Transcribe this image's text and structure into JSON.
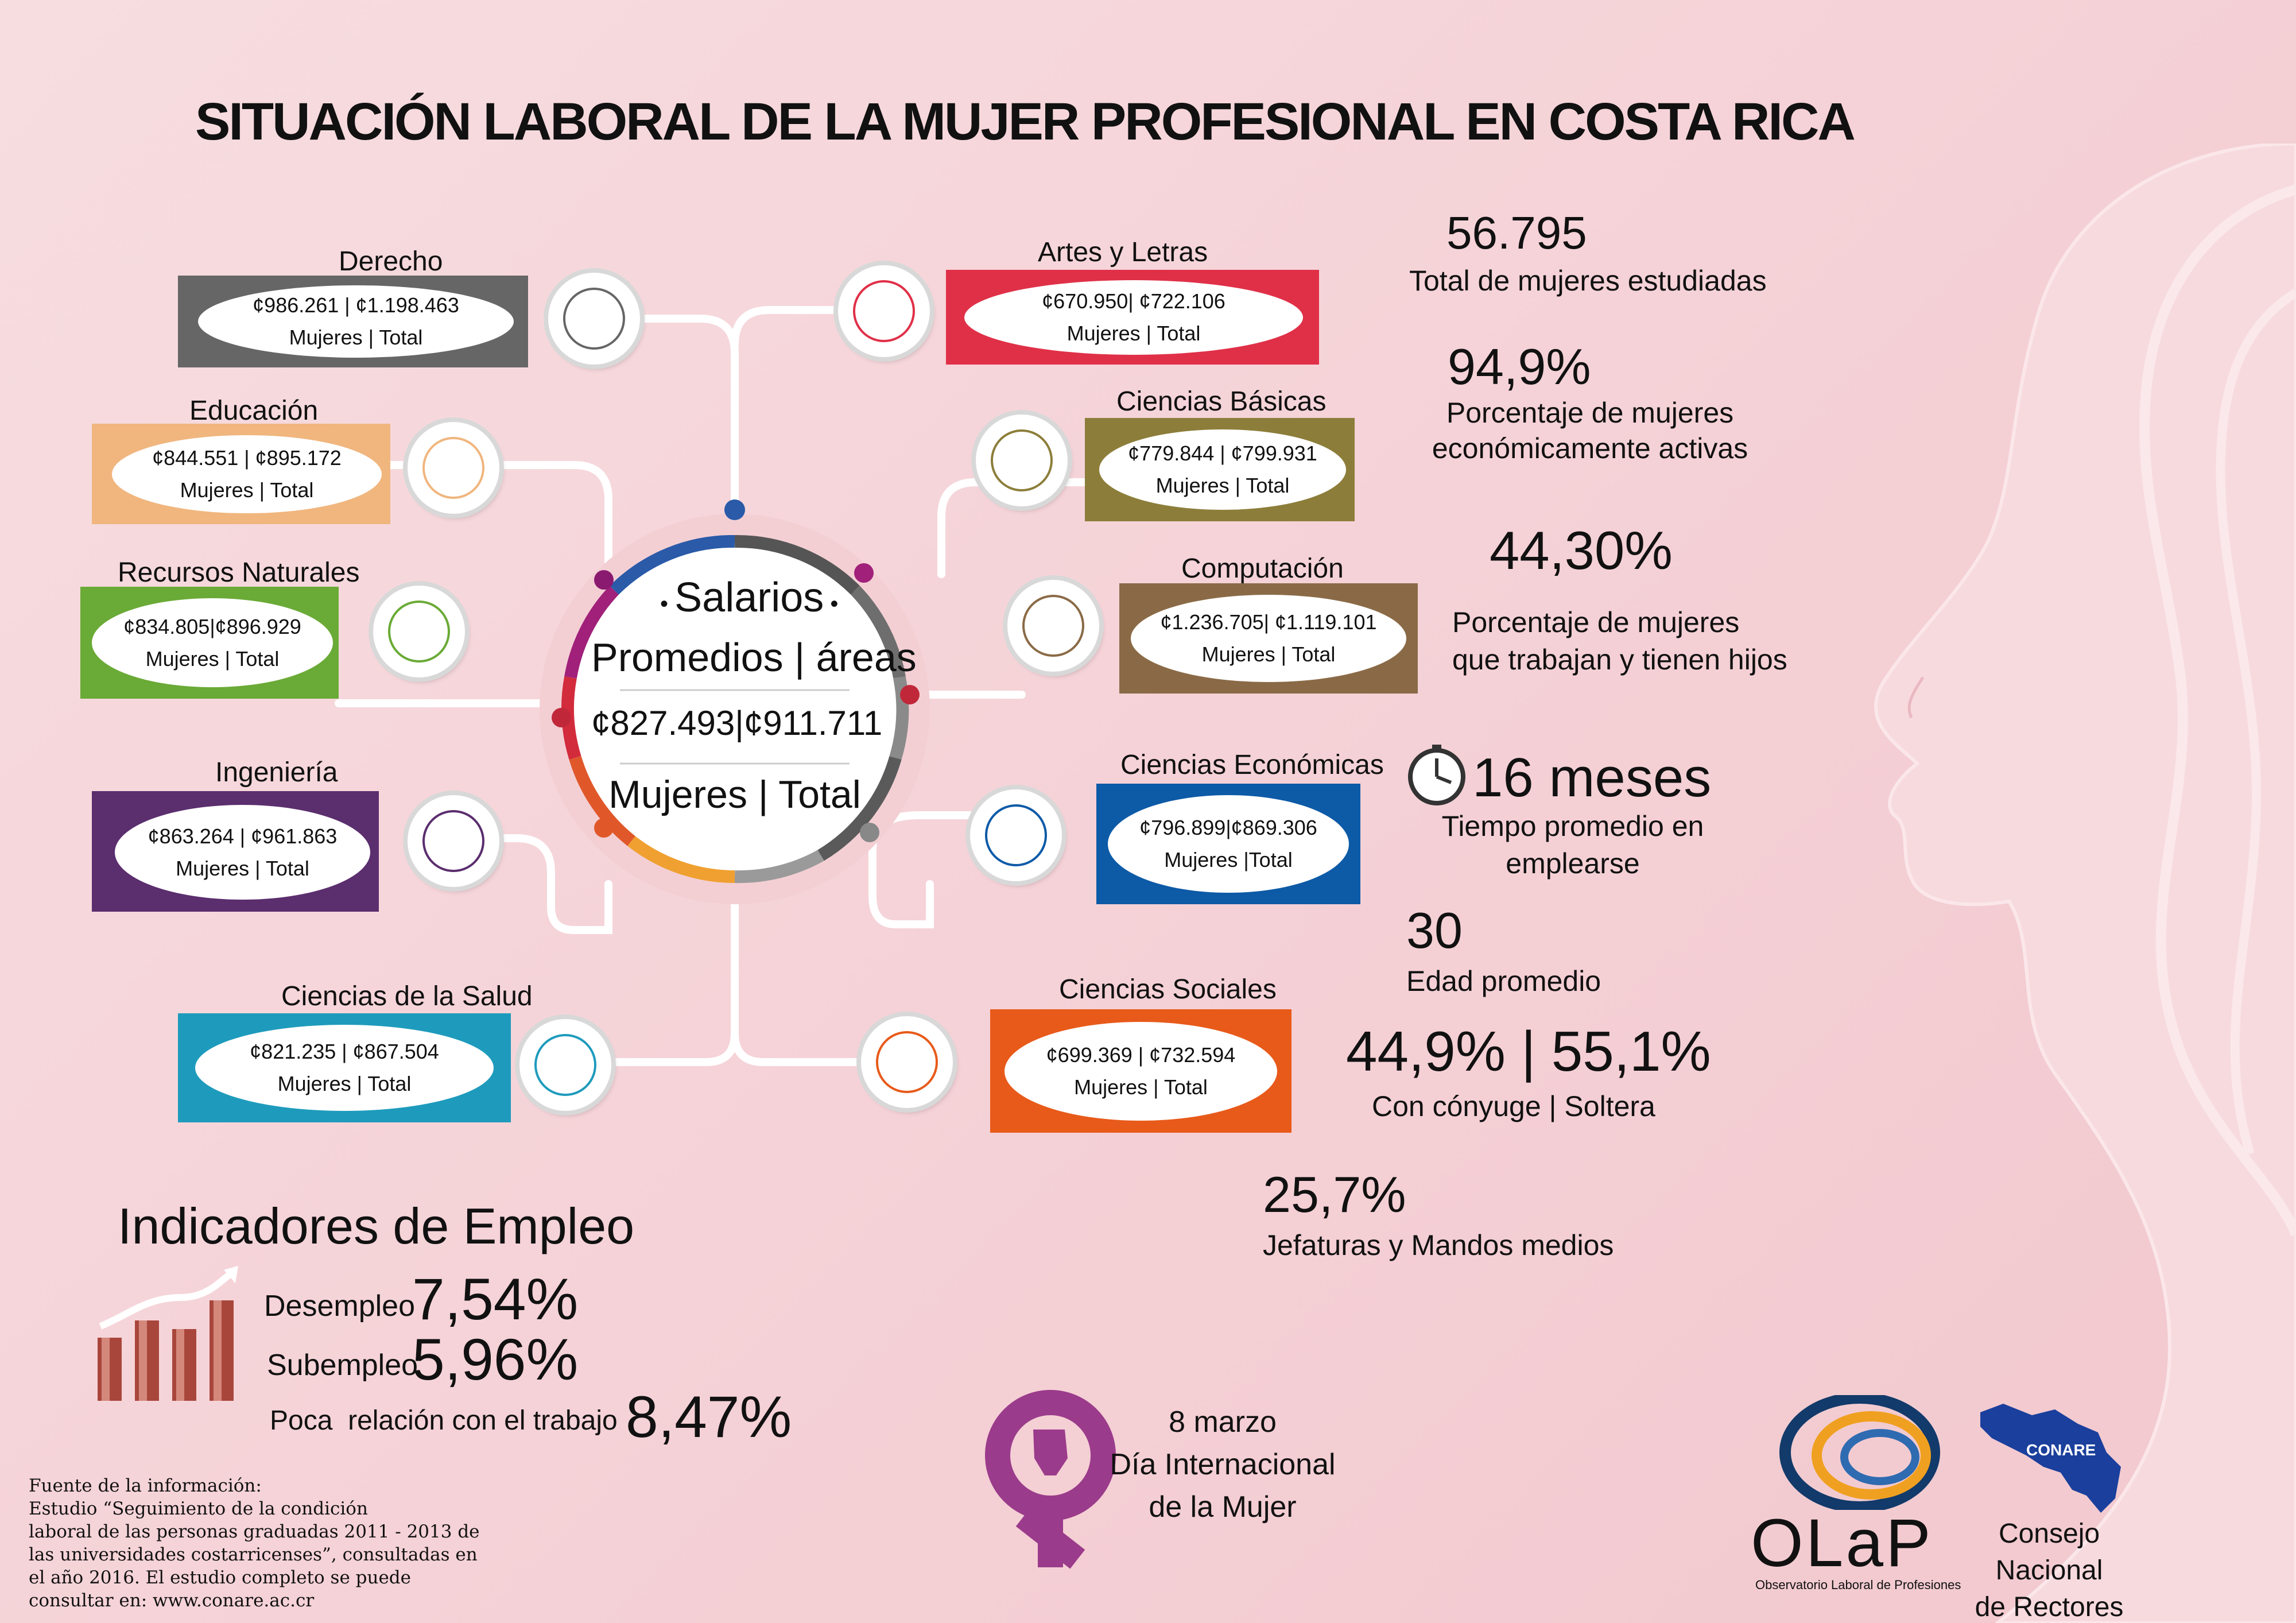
{
  "title": "SITUACIÓN LABORAL DE LA MUJER PROFESIONAL EN COSTA RICA",
  "center": {
    "line1": "Salarios",
    "line2": "Promedios | áreas",
    "salary": "¢827.493|¢911.711",
    "labels": "Mujeres | Total"
  },
  "areas": [
    {
      "title": "Derecho",
      "salary": "¢986.261 | ¢1.198.463",
      "labels": "Mujeres  |  Total",
      "color": "#666666",
      "icon": "judge-gavel-icon"
    },
    {
      "title": "Educación",
      "salary": "¢844.551 | ¢895.172",
      "labels": "Mujeres  |  Total",
      "color": "#f0b67e",
      "icon": "education-book-icon"
    },
    {
      "title": "Recursos Naturales",
      "salary": "¢834.805|¢896.929",
      "labels": "Mujeres  |  Total",
      "color": "#6aaa36",
      "icon": "natural-resources-magnifier-icon"
    },
    {
      "title": "Ingeniería",
      "salary": "¢863.264 | ¢961.863",
      "labels": "Mujeres  |  Total",
      "color": "#5b2e6e",
      "icon": "engineer-tools-icon"
    },
    {
      "title": "Ciencias de la Salud",
      "salary": "¢821.235 | ¢867.504",
      "labels": "Mujeres  |  Total",
      "color": "#1e9bbc",
      "icon": "health-ambulance-icon"
    },
    {
      "title": "Artes y Letras",
      "salary": "¢670.950| ¢722.106",
      "labels": "Mujeres  |  Total",
      "color": "#e03048",
      "icon": "arts-palette-icon"
    },
    {
      "title": "Ciencias Básicas",
      "salary": "¢779.844 | ¢799.931",
      "labels": "Mujeres  |  Total",
      "color": "#8c7e3a",
      "icon": "basic-sciences-globe-icon"
    },
    {
      "title": "Computación",
      "salary": "¢1.236.705| ¢1.119.101",
      "labels": "Mujeres  |  Total",
      "color": "#8a6a46",
      "icon": "computer-icon"
    },
    {
      "title": "Ciencias Económicas",
      "salary": "¢796.899|¢869.306",
      "labels": "Mujeres  |Total",
      "color": "#0d5aa7",
      "icon": "economics-chart-icon"
    },
    {
      "title": "Ciencias Sociales",
      "salary": "¢699.369 | ¢732.594",
      "labels": "Mujeres  |  Total",
      "color": "#e85a1a",
      "icon": "social-sciences-people-icon"
    }
  ],
  "stats": {
    "total_num": "56.795",
    "total_lbl": "Total de mujeres estudiadas",
    "activas_num": "94,9%",
    "activas_lbl1": "Porcentaje de mujeres",
    "activas_lbl2": "económicamente activas",
    "hijos_num": "44,30%",
    "hijos_lbl1": "Porcentaje de mujeres",
    "hijos_lbl2": "que trabajan y tienen hijos",
    "meses_num": "16 meses",
    "meses_lbl1": "Tiempo promedio en",
    "meses_lbl2": "emplearse",
    "edad_num": "30",
    "edad_lbl": "Edad promedio",
    "conyuge_num": "44,9% | 55,1%",
    "conyuge_lbl": "Con cónyuge | Soltera",
    "jefaturas_num": "25,7%",
    "jefaturas_lbl": "Jefaturas y Mandos medios"
  },
  "indicadores": {
    "title": "Indicadores de Empleo",
    "desempleo_lbl": "Desempleo",
    "desempleo_val": "7,54%",
    "subempleo_lbl": "Subempleo",
    "subempleo_val": "5,96%",
    "poca_lbl": "Poca  relación con el trabajo",
    "poca_val": "8,47%"
  },
  "source": {
    "l1": "Fuente de la información:",
    "l2": "Estudio “Seguimiento de la condición",
    "l3": "laboral de las personas graduadas 2011 - 2013 de",
    "l4": "las universidades costarricenses”, consultadas en",
    "l5": "el año 2016. El estudio completo se puede",
    "l6": "consultar en: www.conare.ac.cr"
  },
  "womens_day": {
    "l1": "8 marzo",
    "l2": "Día Internacional",
    "l3": "de la Mujer"
  },
  "logos": {
    "olap": "OLaP",
    "olap_sub": "Observatorio Laboral de Profesiones",
    "conare": "CONARE",
    "conare_l1": "Consejo Nacional",
    "conare_l2": "de Rectores"
  },
  "colors": {
    "bg": "#f5d3d8",
    "silhouette": "#f8dde1"
  }
}
